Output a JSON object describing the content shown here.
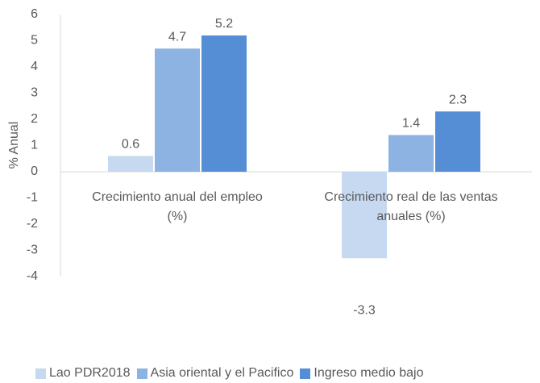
{
  "chart_data": {
    "type": "bar",
    "categories": [
      "Crecimiento anual del empleo (%)",
      "Crecimiento real de las ventas anuales (%)"
    ],
    "series": [
      {
        "name": "Lao PDR2018",
        "color": "#c6d9f1",
        "values": [
          0.6,
          -3.3
        ]
      },
      {
        "name": "Asia oriental y el Pacifico",
        "color": "#8db3e2",
        "values": [
          4.7,
          1.4
        ]
      },
      {
        "name": "Ingreso medio bajo",
        "color": "#558ed5",
        "values": [
          5.2,
          2.3
        ]
      }
    ],
    "y_label": "% Anual",
    "ylim": [
      -4,
      6
    ],
    "yticks": [
      -4,
      -3,
      -2,
      -1,
      0,
      1,
      2,
      3,
      4,
      5,
      6
    ],
    "legend": "bottom",
    "grid": false
  }
}
